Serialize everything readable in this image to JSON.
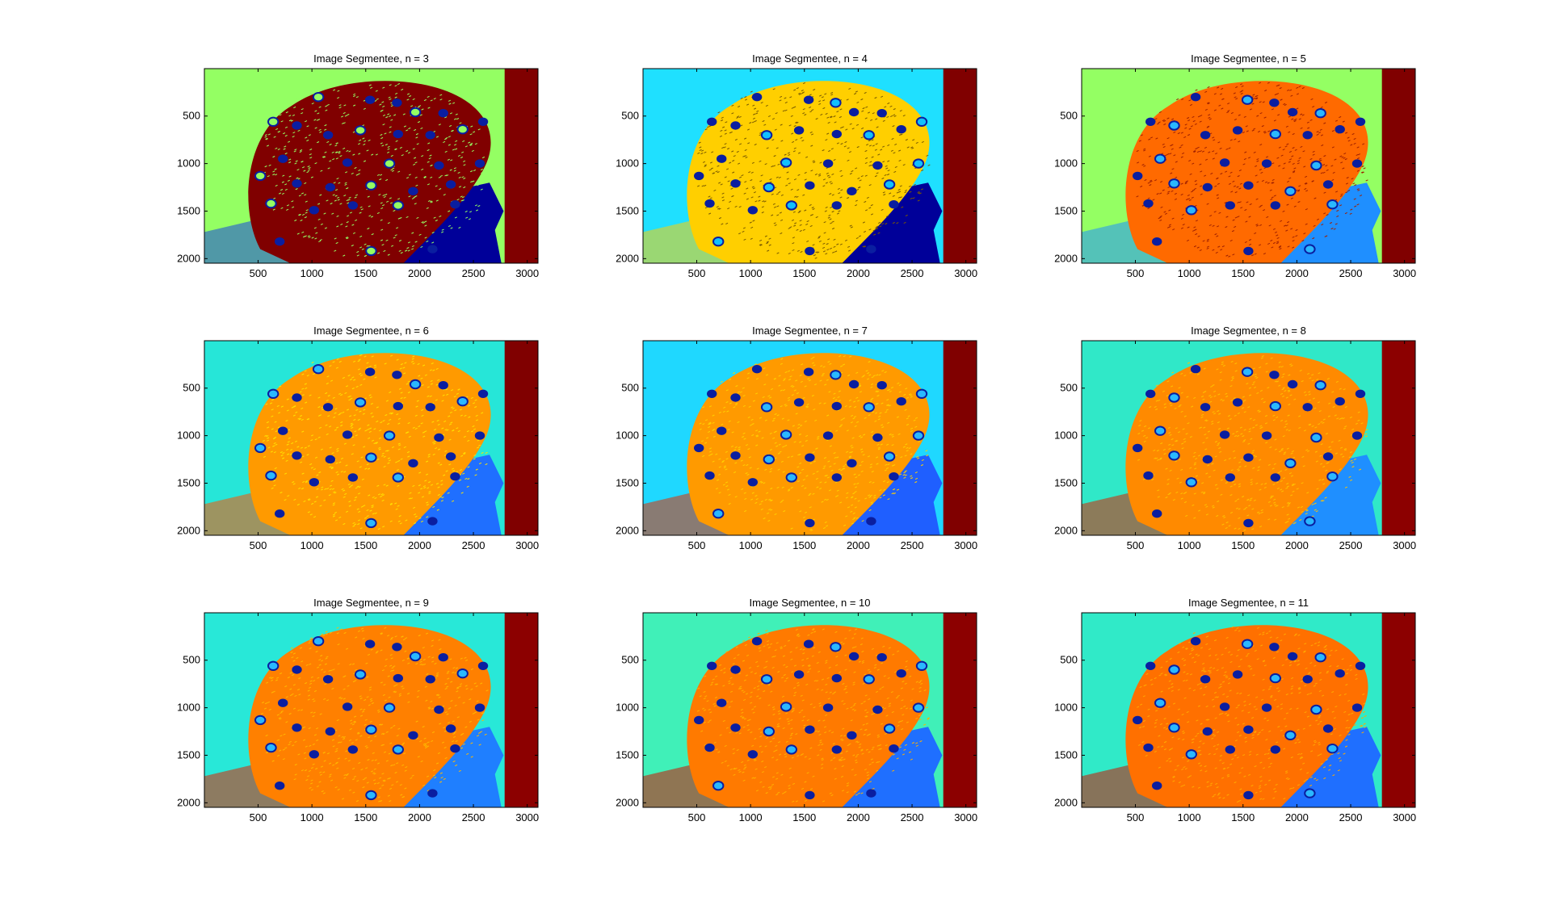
{
  "figure": {
    "colormap": "jet",
    "colormap_stops": [
      "#00008f",
      "#0000ff",
      "#00ffff",
      "#ffff00",
      "#ff0000",
      "#800000"
    ]
  },
  "chart_data": [
    {
      "type": "heatmap",
      "title": "Image Segmentee, n = 3",
      "n": 3,
      "xlim": [
        1,
        3100
      ],
      "ylim": [
        2048,
        1
      ],
      "xticks": [
        500,
        1000,
        1500,
        2000,
        2500,
        3000
      ],
      "yticks": [
        500,
        1000,
        1500,
        2000
      ],
      "palette": {
        "background": "#94ff63",
        "head": "#800000",
        "head_texture": "#94ff63",
        "electrode": "#0a1ea0",
        "electrode_ring": "#94ff63",
        "neck": "#000099",
        "right_strip": "#800000",
        "floor": "#1744e0"
      }
    },
    {
      "type": "heatmap",
      "title": "Image Segmentee, n = 4",
      "n": 4,
      "xlim": [
        1,
        3100
      ],
      "ylim": [
        2048,
        1
      ],
      "xticks": [
        500,
        1000,
        1500,
        2000,
        2500,
        3000
      ],
      "yticks": [
        500,
        1000,
        1500,
        2000
      ],
      "palette": {
        "background": "#1fe0ff",
        "head": "#ffcf00",
        "head_texture": "#7a5a00",
        "electrode": "#0a1ea0",
        "electrode_ring": "#12c0ff",
        "neck": "#000099",
        "right_strip": "#800000",
        "floor": "#ffcf00"
      }
    },
    {
      "type": "heatmap",
      "title": "Image Segmentee, n = 5",
      "n": 5,
      "xlim": [
        1,
        3100
      ],
      "ylim": [
        2048,
        1
      ],
      "xticks": [
        500,
        1000,
        1500,
        2000,
        2500,
        3000
      ],
      "yticks": [
        500,
        1000,
        1500,
        2000
      ],
      "palette": {
        "background": "#94ff63",
        "head": "#ff6a00",
        "head_texture": "#a02000",
        "electrode": "#0a1ea0",
        "electrode_ring": "#2ab8ff",
        "neck": "#1f8fff",
        "right_strip": "#800000",
        "floor": "#1f8fff"
      }
    },
    {
      "type": "heatmap",
      "title": "Image Segmentee, n = 6",
      "n": 6,
      "xlim": [
        1,
        3100
      ],
      "ylim": [
        2048,
        1
      ],
      "xticks": [
        500,
        1000,
        1500,
        2000,
        2500,
        3000
      ],
      "yticks": [
        500,
        1000,
        1500,
        2000
      ],
      "palette": {
        "background": "#26e6d8",
        "head": "#ff9a00",
        "head_texture": "#ffe200",
        "electrode": "#0a1ea0",
        "electrode_ring": "#2ab8ff",
        "neck": "#1f6fff",
        "right_strip": "#800000",
        "floor": "#ff5000"
      }
    },
    {
      "type": "heatmap",
      "title": "Image Segmentee, n = 7",
      "n": 7,
      "xlim": [
        1,
        3100
      ],
      "ylim": [
        2048,
        1
      ],
      "xticks": [
        500,
        1000,
        1500,
        2000,
        2500,
        3000
      ],
      "yticks": [
        500,
        1000,
        1500,
        2000
      ],
      "palette": {
        "background": "#1fd8ff",
        "head": "#ff9a00",
        "head_texture": "#ffd000",
        "electrode": "#0a1ea0",
        "electrode_ring": "#2ab8ff",
        "neck": "#1f5fff",
        "right_strip": "#800000",
        "floor": "#e03000"
      }
    },
    {
      "type": "heatmap",
      "title": "Image Segmentee, n = 8",
      "n": 8,
      "xlim": [
        1,
        3100
      ],
      "ylim": [
        2048,
        1
      ],
      "xticks": [
        500,
        1000,
        1500,
        2000,
        2500,
        3000
      ],
      "yticks": [
        500,
        1000,
        1500,
        2000
      ],
      "palette": {
        "background": "#30e8c8",
        "head": "#ff8a00",
        "head_texture": "#ffc000",
        "electrode": "#0a1ea0",
        "electrode_ring": "#2ab8ff",
        "neck": "#1f8fff",
        "right_strip": "#8c0000",
        "floor": "#d82000"
      }
    },
    {
      "type": "heatmap",
      "title": "Image Segmentee, n = 9",
      "n": 9,
      "xlim": [
        1,
        3100
      ],
      "ylim": [
        2048,
        1
      ],
      "xticks": [
        500,
        1000,
        1500,
        2000,
        2500,
        3000
      ],
      "yticks": [
        500,
        1000,
        1500,
        2000
      ],
      "palette": {
        "background": "#28e8d8",
        "head": "#ff8000",
        "head_texture": "#ffb800",
        "electrode": "#0a1ea0",
        "electrode_ring": "#2ab8ff",
        "neck": "#1f7fff",
        "right_strip": "#8c0000",
        "floor": "#e02000"
      }
    },
    {
      "type": "heatmap",
      "title": "Image Segmentee, n = 10",
      "n": 10,
      "xlim": [
        1,
        3100
      ],
      "ylim": [
        2048,
        1
      ],
      "xticks": [
        500,
        1000,
        1500,
        2000,
        2500,
        3000
      ],
      "yticks": [
        500,
        1000,
        1500,
        2000
      ],
      "palette": {
        "background": "#40f0b8",
        "head": "#ff7a00",
        "head_texture": "#ffb000",
        "electrode": "#0a1ea0",
        "electrode_ring": "#2ab8ff",
        "neck": "#1f6fff",
        "right_strip": "#8c0000",
        "floor": "#d01000"
      }
    },
    {
      "type": "heatmap",
      "title": "Image Segmentee, n = 11",
      "n": 11,
      "xlim": [
        1,
        3100
      ],
      "ylim": [
        2048,
        1
      ],
      "xticks": [
        500,
        1000,
        1500,
        2000,
        2500,
        3000
      ],
      "yticks": [
        500,
        1000,
        1500,
        2000
      ],
      "palette": {
        "background": "#30eac8",
        "head": "#ff7000",
        "head_texture": "#ffa800",
        "electrode": "#0a1ea0",
        "electrode_ring": "#2ab8ff",
        "neck": "#1f6fff",
        "right_strip": "#8c0000",
        "floor": "#d01000"
      }
    }
  ]
}
